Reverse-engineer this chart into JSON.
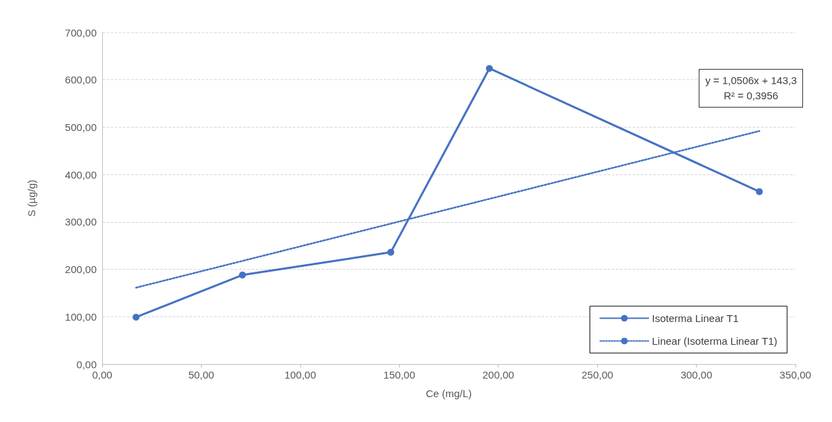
{
  "chart_data": {
    "type": "line",
    "xlabel": "Ce (mg/L)",
    "ylabel": "S (µg/g)",
    "xlim": [
      0,
      350
    ],
    "ylim": [
      0,
      700
    ],
    "xticks": [
      {
        "value": 0,
        "label": "0,00"
      },
      {
        "value": 50,
        "label": "50,00"
      },
      {
        "value": 100,
        "label": "100,00"
      },
      {
        "value": 150,
        "label": "150,00"
      },
      {
        "value": 200,
        "label": "200,00"
      },
      {
        "value": 250,
        "label": "250,00"
      },
      {
        "value": 300,
        "label": "300,00"
      },
      {
        "value": 350,
        "label": "350,00"
      }
    ],
    "yticks": [
      {
        "value": 0,
        "label": "0,00"
      },
      {
        "value": 100,
        "label": "100,00"
      },
      {
        "value": 200,
        "label": "200,00"
      },
      {
        "value": 300,
        "label": "300,00"
      },
      {
        "value": 400,
        "label": "400,00"
      },
      {
        "value": 500,
        "label": "500,00"
      },
      {
        "value": 600,
        "label": "600,00"
      },
      {
        "value": 700,
        "label": "700,00"
      }
    ],
    "grid": "y",
    "legend": "bottom right",
    "marker": "circle",
    "line_style": "solid",
    "series": [
      {
        "name": "Isoterma Linear T1",
        "color": "#4472c4",
        "x": [
          17.1,
          70.8,
          145.7,
          195.5,
          331.8
        ],
        "values": [
          99,
          188,
          236,
          624,
          364
        ]
      },
      {
        "name": "Linear (Isoterma Linear T1)",
        "type": "line",
        "color": "#4472c4",
        "marker": "none",
        "line_style": "dotted",
        "x": [
          17.1,
          331.8
        ],
        "values": [
          161.3,
          491.9
        ]
      }
    ],
    "annotations": [
      "y = 1,0506x + 143,3",
      "R² = 0,3956"
    ]
  }
}
